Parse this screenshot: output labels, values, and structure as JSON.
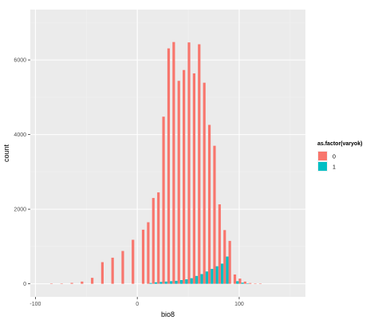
{
  "chart_data": {
    "type": "bar",
    "xlabel": "bio8",
    "ylabel": "count",
    "xlim": [
      -105,
      165
    ],
    "ylim": [
      -350,
      7350
    ],
    "x_ticks": [
      -100,
      0,
      100
    ],
    "y_ticks": [
      0,
      2000,
      4000,
      6000
    ],
    "grid": true,
    "position": "dodge",
    "legend": {
      "title": "as.factor(varyok)",
      "placement": "right"
    },
    "series": [
      {
        "name": "0",
        "color": "#F8766D",
        "x": [
          -83,
          -73,
          -63,
          -53,
          -43,
          -33,
          -23,
          -13,
          -3,
          7,
          12,
          17,
          22,
          27,
          32,
          37,
          42,
          47,
          52,
          57,
          62,
          67,
          72,
          77,
          82,
          87,
          92,
          97,
          102,
          107,
          112,
          117,
          122,
          127,
          132,
          137,
          142,
          147
        ],
        "values": [
          5,
          10,
          25,
          60,
          160,
          580,
          700,
          880,
          1180,
          1450,
          1650,
          2300,
          2450,
          4480,
          6310,
          6480,
          5440,
          5730,
          6470,
          5640,
          6420,
          5390,
          4260,
          3700,
          2130,
          1440,
          1150,
          250,
          140,
          60,
          20,
          10,
          5,
          0,
          0,
          0,
          0,
          0
        ]
      },
      {
        "name": "1",
        "color": "#00BFC4",
        "x": [
          -83,
          -73,
          -63,
          -53,
          -43,
          -33,
          -23,
          -13,
          -3,
          7,
          12,
          17,
          22,
          27,
          32,
          37,
          42,
          47,
          52,
          57,
          62,
          67,
          72,
          77,
          82,
          87,
          92,
          97,
          102,
          107,
          112,
          117,
          122,
          127,
          132,
          137,
          142,
          147
        ],
        "values": [
          0,
          0,
          0,
          0,
          0,
          0,
          0,
          0,
          0,
          0,
          20,
          40,
          50,
          60,
          70,
          80,
          100,
          120,
          150,
          210,
          260,
          330,
          400,
          470,
          540,
          730,
          0,
          70,
          30,
          5,
          0,
          0,
          0,
          0,
          0,
          0,
          0,
          0
        ]
      }
    ]
  }
}
